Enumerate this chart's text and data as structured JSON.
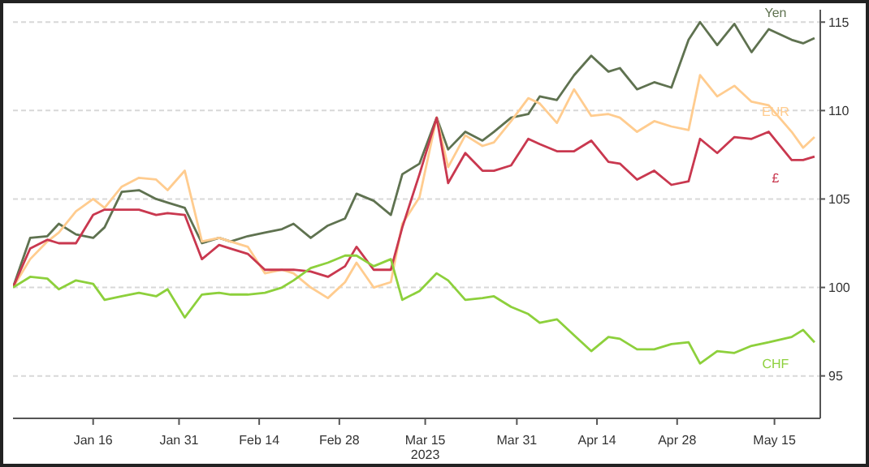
{
  "chart_data": {
    "type": "line",
    "x": [
      "2023-01-02",
      "2023-01-05",
      "2023-01-08",
      "2023-01-10",
      "2023-01-13",
      "2023-01-16",
      "2023-01-18",
      "2023-01-21",
      "2023-01-24",
      "2023-01-27",
      "2023-01-29",
      "2023-02-01",
      "2023-02-04",
      "2023-02-07",
      "2023-02-09",
      "2023-02-12",
      "2023-02-15",
      "2023-02-18",
      "2023-02-20",
      "2023-02-23",
      "2023-02-26",
      "2023-03-01",
      "2023-03-03",
      "2023-03-06",
      "2023-03-09",
      "2023-03-11",
      "2023-03-14",
      "2023-03-17",
      "2023-03-19",
      "2023-03-22",
      "2023-03-25",
      "2023-03-27",
      "2023-03-30",
      "2023-04-02",
      "2023-04-04",
      "2023-04-07",
      "2023-04-10",
      "2023-04-13",
      "2023-04-16",
      "2023-04-18",
      "2023-04-21",
      "2023-04-24",
      "2023-04-27",
      "2023-04-30",
      "2023-05-02",
      "2023-05-05",
      "2023-05-08",
      "2023-05-11",
      "2023-05-14",
      "2023-05-18",
      "2023-05-20",
      "2023-05-22"
    ],
    "series": [
      {
        "name": "Yen",
        "color": "#5f7250",
        "values": [
          100,
          102.8,
          102.9,
          103.6,
          103.0,
          102.8,
          103.4,
          105.4,
          105.5,
          105.0,
          104.8,
          104.5,
          102.5,
          102.8,
          102.6,
          102.9,
          103.1,
          103.3,
          103.6,
          102.8,
          103.5,
          103.9,
          105.3,
          104.9,
          104.1,
          106.4,
          107.0,
          109.6,
          107.8,
          108.8,
          108.3,
          108.8,
          109.6,
          109.8,
          110.8,
          110.6,
          112.0,
          113.1,
          112.2,
          112.4,
          111.2,
          111.6,
          111.3,
          114.0,
          115.0,
          113.7,
          114.9,
          113.3,
          114.6,
          114.0,
          113.8,
          114.1
        ]
      },
      {
        "name": "EUR",
        "color": "#ffcc8f",
        "values": [
          100,
          101.6,
          102.6,
          103.1,
          104.3,
          105.0,
          104.5,
          105.7,
          106.2,
          106.1,
          105.5,
          106.6,
          102.6,
          102.8,
          102.6,
          102.3,
          100.8,
          101.0,
          100.8,
          100.0,
          99.4,
          100.3,
          101.4,
          100.0,
          100.3,
          103.6,
          105.1,
          109.6,
          106.8,
          108.6,
          108.0,
          108.2,
          109.4,
          110.7,
          110.4,
          109.3,
          111.2,
          109.7,
          109.8,
          109.6,
          108.8,
          109.4,
          109.1,
          108.9,
          112.0,
          110.8,
          111.4,
          110.5,
          110.3,
          108.8,
          107.9,
          108.5
        ]
      },
      {
        "name": "£",
        "color": "#c9384f",
        "values": [
          100,
          102.2,
          102.7,
          102.5,
          102.5,
          104.1,
          104.4,
          104.4,
          104.4,
          104.1,
          104.2,
          104.1,
          101.6,
          102.4,
          102.2,
          101.9,
          101.0,
          101.0,
          101.0,
          100.9,
          100.6,
          101.2,
          102.3,
          101.0,
          101.0,
          103.4,
          106.4,
          109.6,
          105.9,
          107.6,
          106.6,
          106.6,
          106.9,
          108.4,
          108.1,
          107.7,
          107.7,
          108.3,
          107.1,
          107.0,
          106.1,
          106.6,
          105.8,
          106.0,
          108.4,
          107.6,
          108.5,
          108.4,
          108.8,
          107.2,
          107.2,
          107.4
        ]
      },
      {
        "name": "CHF",
        "color": "#8dd03c",
        "values": [
          100,
          100.6,
          100.5,
          99.9,
          100.4,
          100.2,
          99.3,
          99.5,
          99.7,
          99.5,
          99.9,
          98.3,
          99.6,
          99.7,
          99.6,
          99.6,
          99.7,
          100.0,
          100.4,
          101.1,
          101.4,
          101.8,
          101.8,
          101.2,
          101.6,
          99.3,
          99.8,
          100.8,
          100.4,
          99.3,
          99.4,
          99.5,
          98.9,
          98.5,
          98.0,
          98.2,
          97.3,
          96.4,
          97.2,
          97.1,
          96.5,
          96.5,
          96.8,
          96.9,
          95.7,
          96.4,
          96.3,
          96.7,
          96.9,
          97.2,
          97.6,
          96.9
        ]
      }
    ],
    "xlim": [
      "2023-01-02",
      "2023-05-23"
    ],
    "xticks": [
      {
        "value": "2023-01-16",
        "label": "Jan 16"
      },
      {
        "value": "2023-01-31",
        "label": "Jan 31"
      },
      {
        "value": "2023-02-14",
        "label": "Feb 14"
      },
      {
        "value": "2023-02-28",
        "label": "Feb 28"
      },
      {
        "value": "2023-03-15",
        "label": "Mar 15\n2023"
      },
      {
        "value": "2023-03-31",
        "label": "Mar 31"
      },
      {
        "value": "2023-04-14",
        "label": "Apr 14"
      },
      {
        "value": "2023-04-28",
        "label": "Apr 28"
      },
      {
        "value": "2023-05-15",
        "label": "May 15"
      }
    ],
    "ylim": [
      92.6,
      115.7
    ],
    "yticks": [
      95,
      100,
      105,
      110,
      115
    ],
    "grid": "y",
    "marker": "none",
    "line_style": "solid"
  }
}
